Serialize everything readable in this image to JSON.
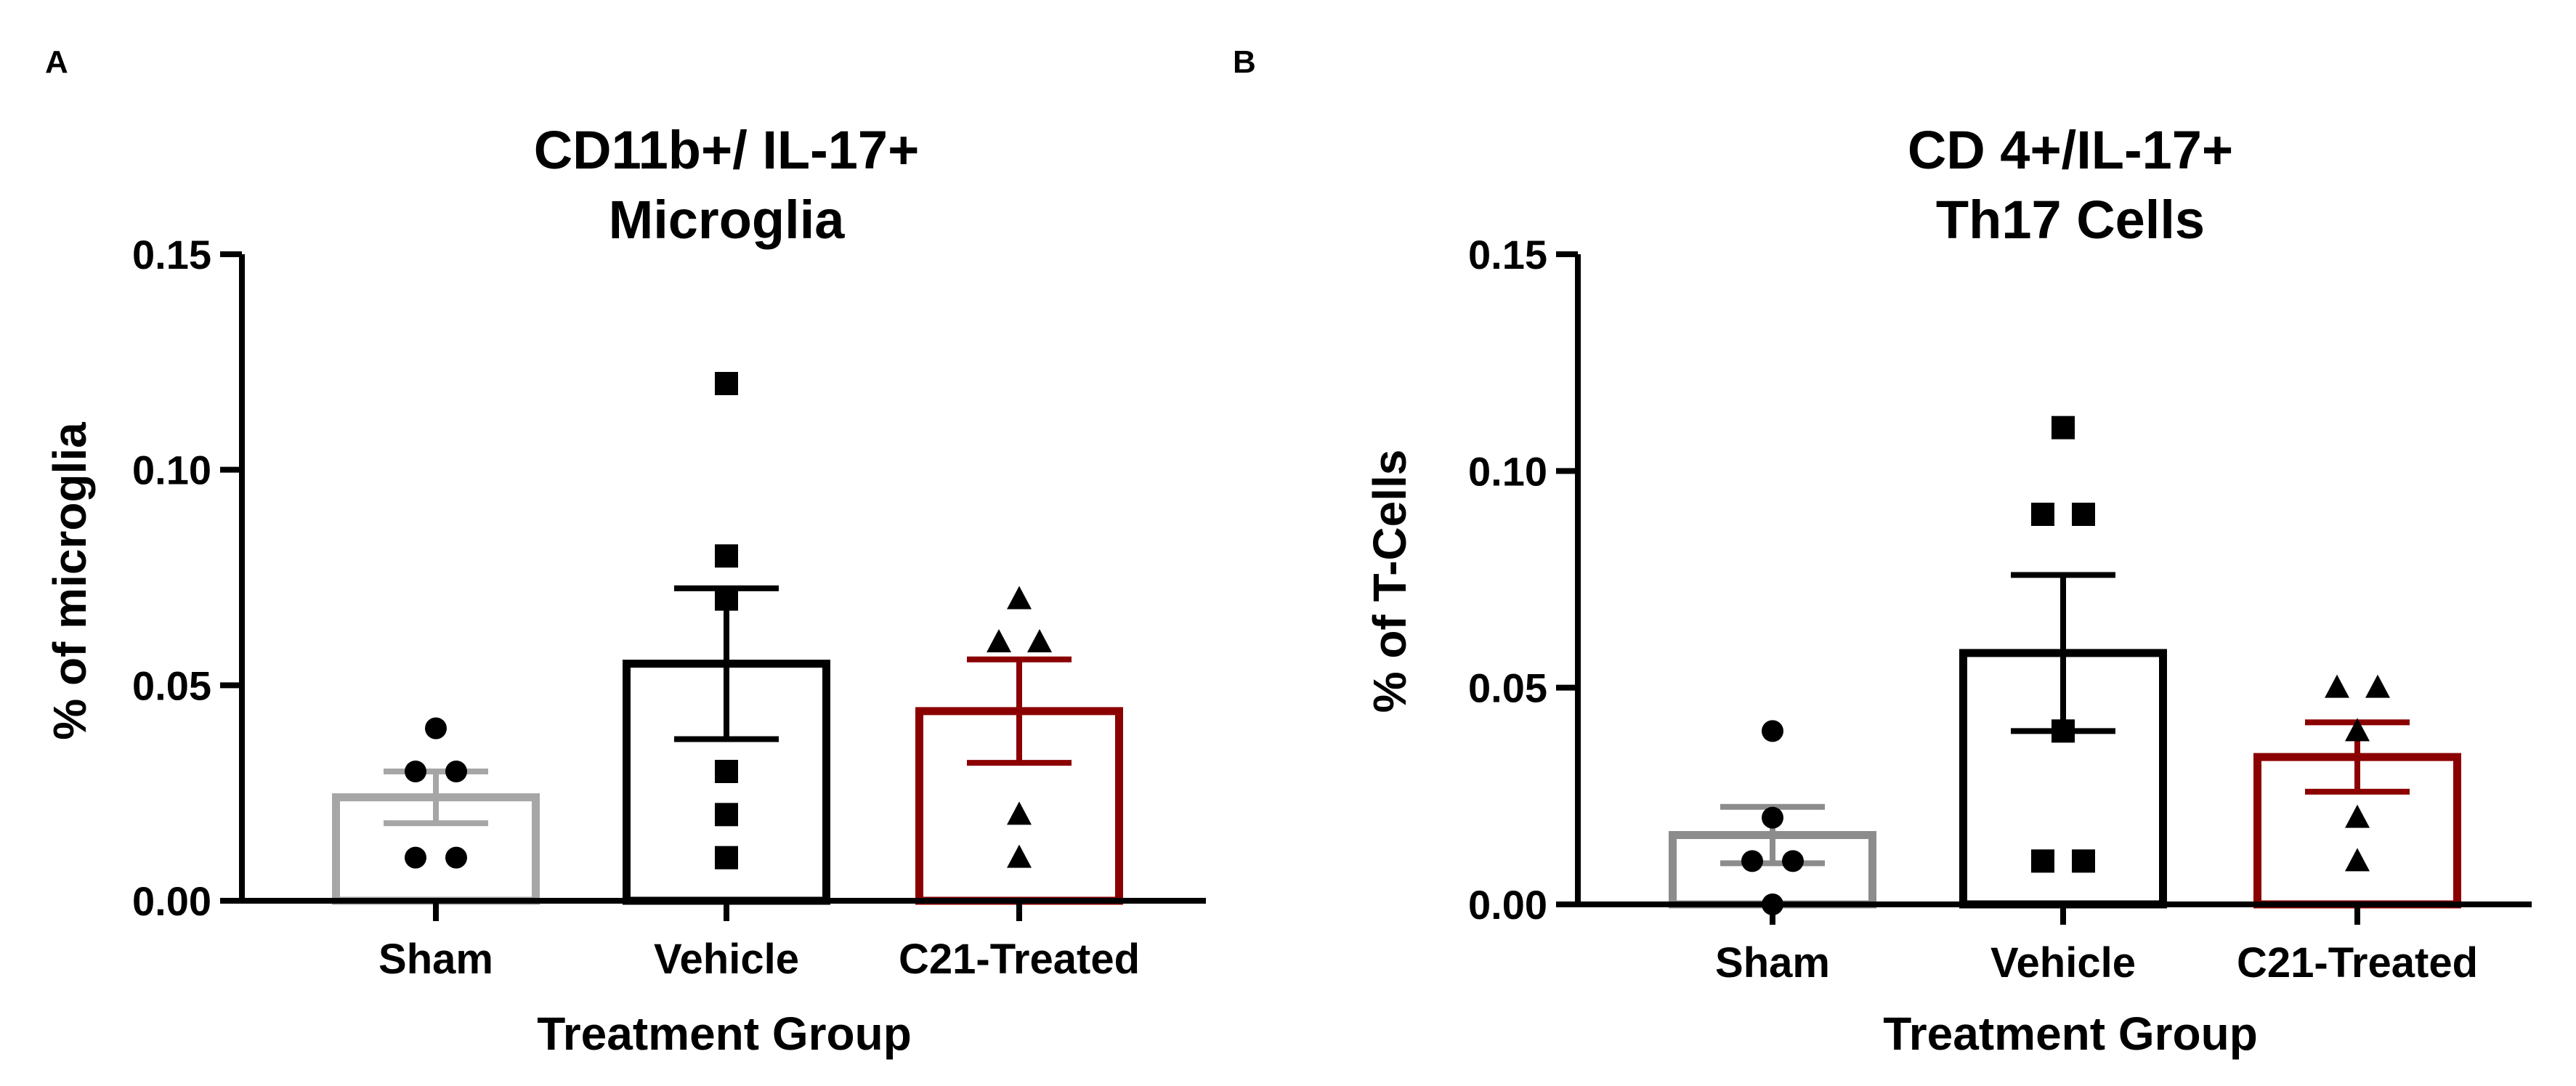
{
  "figure": {
    "panels": [
      {
        "letter": "A",
        "title_line1": "CD11b+/ IL-17+",
        "title_line2": "Microglia"
      },
      {
        "letter": "B",
        "title_line1": "CD 4+/IL-17+",
        "title_line2": "Th17 Cells"
      }
    ]
  },
  "chart_data": [
    {
      "type": "bar",
      "panel": "A",
      "title": "CD11b+/ IL-17+ Microglia",
      "xlabel": "Treatment Group",
      "ylabel": "% of microglia",
      "ylim": [
        0,
        0.15
      ],
      "yticks": [
        "0.00",
        "0.05",
        "0.10",
        "0.15"
      ],
      "grid": false,
      "categories": [
        "Sham",
        "Vehicle",
        "C21-Treated"
      ],
      "bar_colors": [
        "#a6a6a6",
        "#000000",
        "#8b0000"
      ],
      "marker_shapes": [
        "circle",
        "square",
        "triangle"
      ],
      "values": [
        0.024,
        0.055,
        0.044
      ],
      "sem": [
        0.006,
        0.0175,
        0.012
      ],
      "points": [
        [
          0.04,
          0.03,
          0.03,
          0.01,
          0.01
        ],
        [
          0.12,
          0.08,
          0.07,
          0.03,
          0.02,
          0.01
        ],
        [
          0.07,
          0.06,
          0.06,
          0.02,
          0.01
        ]
      ]
    },
    {
      "type": "bar",
      "panel": "B",
      "title": "CD 4+/IL-17+ Th17 Cells",
      "xlabel": "Treatment Group",
      "ylabel": "% of T-Cells",
      "ylim": [
        0,
        0.15
      ],
      "yticks": [
        "0.00",
        "0.05",
        "0.10",
        "0.15"
      ],
      "grid": false,
      "categories": [
        "Sham",
        "Vehicle",
        "C21-Treated"
      ],
      "bar_colors": [
        "#8c8c8c",
        "#000000",
        "#8b0000"
      ],
      "marker_shapes": [
        "circle",
        "square",
        "triangle"
      ],
      "values": [
        0.016,
        0.058,
        0.034
      ],
      "sem": [
        0.0065,
        0.018,
        0.008
      ],
      "points": [
        [
          0.04,
          0.02,
          0.01,
          0.01,
          0.0
        ],
        [
          0.11,
          0.09,
          0.09,
          0.04,
          0.01,
          0.01
        ],
        [
          0.05,
          0.05,
          0.04,
          0.02,
          0.01
        ]
      ]
    }
  ]
}
